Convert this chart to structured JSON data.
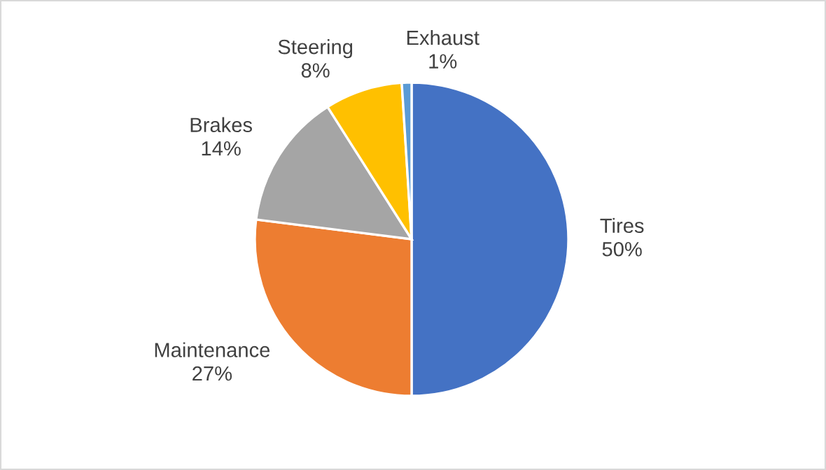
{
  "chart_data": {
    "type": "pie",
    "categories": [
      "Tires",
      "Maintenance",
      "Brakes",
      "Steering",
      "Exhaust"
    ],
    "values": [
      50,
      27,
      14,
      8,
      1
    ],
    "value_labels": [
      "50%",
      "27%",
      "14%",
      "8%",
      "1%"
    ],
    "colors": [
      "#4472c4",
      "#ed7d31",
      "#a5a5a5",
      "#ffc000",
      "#5b9bd5"
    ],
    "legend": false
  }
}
